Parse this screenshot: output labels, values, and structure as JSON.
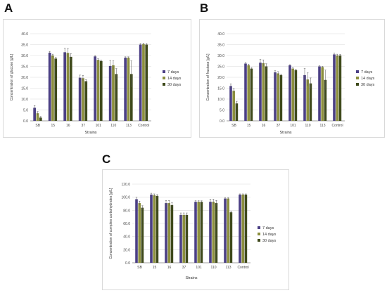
{
  "panel_labels": [
    "A",
    "B",
    "C"
  ],
  "legend_labels": [
    "7 days",
    "14 days",
    "30 days"
  ],
  "series_colors": [
    "#4B3F85",
    "#8C8F3E",
    "#3F4A1C"
  ],
  "chart_data": [
    {
      "type": "bar",
      "panel": "A",
      "xlabel": "Strains",
      "ylabel": "Concentration of glucose [g/L]",
      "ylim": [
        0,
        40
      ],
      "yticks": [
        "0.0",
        "5.0",
        "10.0",
        "15.0",
        "20.0",
        "25.0",
        "30.0",
        "35.0",
        "40.0"
      ],
      "categories": [
        "SB",
        "15",
        "16",
        "37",
        "101",
        "110",
        "113",
        "Control"
      ],
      "series": [
        {
          "name": "7 days",
          "values": [
            6.0,
            31.3,
            31.5,
            19.8,
            29.6,
            25.2,
            29.0,
            35.0
          ],
          "errors": [
            1.0,
            0.6,
            1.8,
            1.2,
            0.4,
            2.5,
            0.4,
            0.5
          ]
        },
        {
          "name": "14 days",
          "values": [
            3.5,
            30.0,
            31.2,
            19.6,
            28.0,
            25.5,
            29.0,
            35.2
          ],
          "errors": [
            0.8,
            0.6,
            2.0,
            1.3,
            0.5,
            2.0,
            0.4,
            0.5
          ]
        },
        {
          "name": "30 days",
          "values": [
            1.5,
            28.6,
            29.4,
            18.2,
            27.5,
            21.5,
            21.5,
            35.0
          ],
          "errors": [
            0.5,
            0.6,
            1.5,
            0.7,
            0.4,
            2.5,
            6.0,
            0.5
          ]
        }
      ],
      "legend_position": "right",
      "grid": true
    },
    {
      "type": "bar",
      "panel": "B",
      "xlabel": "Strains",
      "ylabel": "Concentration of fructose [g/L]",
      "ylim": [
        0,
        40
      ],
      "yticks": [
        "0.0",
        "5.0",
        "10.0",
        "15.0",
        "20.0",
        "25.0",
        "30.0",
        "35.0",
        "40.0"
      ],
      "categories": [
        "SB",
        "15",
        "16",
        "37",
        "101",
        "110",
        "113",
        "Control"
      ],
      "series": [
        {
          "name": "7 days",
          "values": [
            16.0,
            26.3,
            26.7,
            22.3,
            25.5,
            21.0,
            25.0,
            30.5
          ],
          "errors": [
            1.0,
            0.5,
            1.5,
            0.7,
            0.3,
            3.0,
            0.3,
            0.6
          ]
        },
        {
          "name": "14 days",
          "values": [
            13.8,
            25.5,
            26.5,
            21.8,
            24.0,
            19.0,
            24.7,
            30.0
          ],
          "errors": [
            1.0,
            0.5,
            1.5,
            0.8,
            0.4,
            3.0,
            0.3,
            0.6
          ]
        },
        {
          "name": "30 days",
          "values": [
            8.0,
            24.0,
            25.0,
            21.0,
            23.3,
            17.2,
            18.8,
            30.0
          ],
          "errors": [
            1.0,
            0.4,
            1.2,
            0.5,
            0.3,
            2.5,
            4.5,
            0.5
          ]
        }
      ],
      "legend_position": "right",
      "grid": true
    },
    {
      "type": "bar",
      "panel": "C",
      "xlabel": "Strains",
      "ylabel": "Concentration of complex carbohydrates [g/L]",
      "ylim": [
        0,
        120
      ],
      "yticks": [
        "0.0",
        "20.0",
        "40.0",
        "60.0",
        "80.0",
        "100.0",
        "120.0"
      ],
      "categories": [
        "SB",
        "15",
        "16",
        "37",
        "101",
        "110",
        "113",
        "Control"
      ],
      "series": [
        {
          "name": "7 days",
          "values": [
            97.0,
            104.0,
            91.0,
            73.0,
            93.0,
            93.0,
            98.0,
            104.0
          ],
          "errors": [
            3.0,
            2.0,
            4.0,
            3.0,
            1.5,
            4.0,
            1.5,
            1.0
          ]
        },
        {
          "name": "14 days",
          "values": [
            91.0,
            103.0,
            91.0,
            73.0,
            93.0,
            93.0,
            98.0,
            104.0
          ],
          "errors": [
            3.0,
            2.0,
            4.0,
            3.0,
            1.5,
            4.0,
            1.5,
            1.0
          ]
        },
        {
          "name": "30 days",
          "values": [
            84.0,
            102.0,
            88.0,
            73.0,
            93.0,
            91.0,
            77.0,
            104.0
          ],
          "errors": [
            3.0,
            2.0,
            4.0,
            3.0,
            1.5,
            4.0,
            2.0,
            1.0
          ]
        }
      ],
      "legend_position": "right",
      "grid": true
    }
  ]
}
